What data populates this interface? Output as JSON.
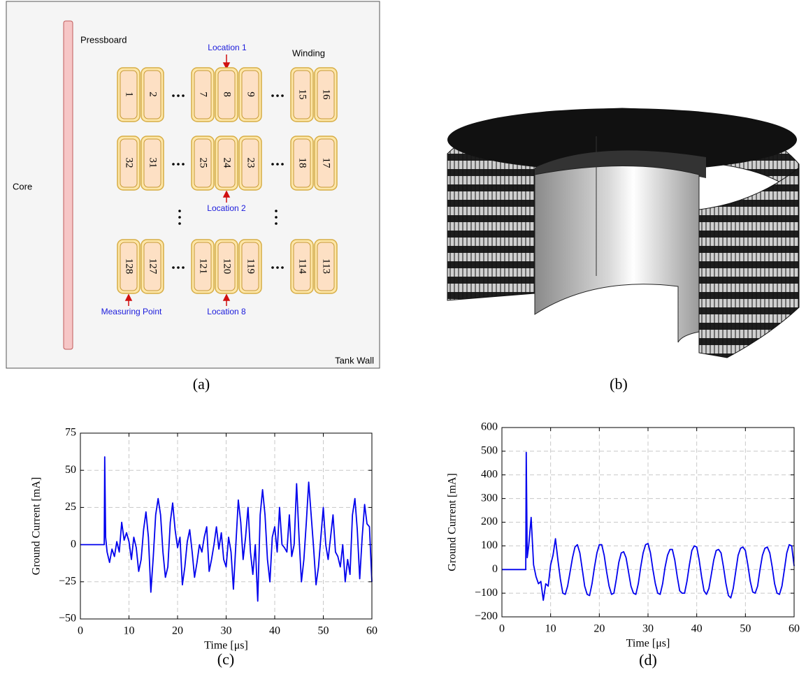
{
  "diagram": {
    "pressboard": "Pressboard",
    "core": "Core",
    "winding": "Winding",
    "tank_wall": "Tank Wall",
    "location_1": "Location 1",
    "location_2": "Location 2",
    "location_8": "Location 8",
    "measuring_point": "Measuring Point",
    "coil_rows": [
      [
        "1",
        "2",
        "7",
        "8",
        "9",
        "15",
        "16"
      ],
      [
        "32",
        "31",
        "25",
        "24",
        "23",
        "18",
        "17"
      ],
      [
        "128",
        "127",
        "121",
        "120",
        "119",
        "114",
        "113"
      ]
    ]
  },
  "captions": [
    "(a)",
    "(b)",
    "(c)",
    "(d)"
  ],
  "chart_data": [
    {
      "type": "line",
      "xlabel": "Time [μs]",
      "ylabel": "Ground Current [mA]",
      "color": "#0000ee",
      "grid": true,
      "xlim": [
        0,
        60
      ],
      "xticks": [
        0,
        10,
        20,
        30,
        40,
        50,
        60
      ],
      "ylim": [
        -50,
        75
      ],
      "yticks": [
        {
          "value": -50,
          "label": "−50"
        },
        {
          "value": -25,
          "label": "−25"
        },
        0,
        25,
        50,
        75
      ],
      "x": [
        0,
        4.9,
        5,
        5.2,
        5.5,
        6,
        6.5,
        7,
        7.5,
        8,
        8.5,
        9,
        9.5,
        10,
        10.5,
        11,
        11.5,
        12,
        12.5,
        13,
        13.5,
        14,
        14.5,
        15,
        15.5,
        16,
        16.5,
        17,
        17.5,
        18,
        18.5,
        19,
        19.5,
        20,
        20.5,
        21,
        21.5,
        22,
        22.5,
        23,
        23.5,
        24,
        24.5,
        25,
        25.5,
        26,
        26.5,
        27,
        27.5,
        28,
        28.5,
        29,
        29.5,
        30,
        30.5,
        31,
        31.5,
        32,
        32.5,
        33,
        33.5,
        34,
        34.5,
        35,
        35.5,
        36,
        36.5,
        37,
        37.5,
        38,
        38.5,
        39,
        39.5,
        40,
        40.5,
        41,
        41.5,
        42,
        42.5,
        43,
        43.5,
        44,
        44.5,
        45,
        45.5,
        46,
        46.5,
        47,
        47.5,
        48,
        48.5,
        49,
        49.5,
        50,
        50.5,
        51,
        51.5,
        52,
        52.5,
        53,
        53.5,
        54,
        54.5,
        55,
        55.5,
        56,
        56.5,
        57,
        57.5,
        58,
        58.5,
        59,
        59.5,
        60
      ],
      "values": [
        0,
        0,
        59,
        5,
        -5,
        -12,
        -3,
        -8,
        2,
        -5,
        15,
        3,
        8,
        2,
        -10,
        5,
        -2,
        -18,
        -10,
        10,
        22,
        5,
        -32,
        -8,
        20,
        31,
        20,
        -5,
        -22,
        -15,
        15,
        28,
        10,
        -2,
        5,
        -27,
        -15,
        2,
        10,
        -5,
        -22,
        -12,
        0,
        -5,
        5,
        12,
        -18,
        -10,
        0,
        12,
        -3,
        8,
        -10,
        -15,
        5,
        -5,
        -30,
        0,
        30,
        15,
        -10,
        5,
        25,
        -5,
        -20,
        0,
        -38,
        20,
        37,
        20,
        -10,
        -25,
        5,
        12,
        -5,
        25,
        0,
        -2,
        -5,
        20,
        -8,
        0,
        41,
        5,
        -25,
        -10,
        15,
        42,
        20,
        -2,
        -27,
        -15,
        5,
        25,
        0,
        -10,
        5,
        20,
        -5,
        -8,
        -15,
        0,
        -25,
        -10,
        -20,
        20,
        31,
        10,
        -23,
        5,
        27,
        14,
        12,
        -25
      ]
    },
    {
      "type": "line",
      "xlabel": "Time [μs]",
      "ylabel": "Ground Current [mA]",
      "color": "#0000ee",
      "grid": true,
      "xlim": [
        0,
        60
      ],
      "xticks": [
        0,
        10,
        20,
        30,
        40,
        50,
        60
      ],
      "ylim": [
        -200,
        600
      ],
      "yticks": [
        {
          "value": -200,
          "label": "−200"
        },
        {
          "value": -100,
          "label": "−100"
        },
        0,
        100,
        200,
        300,
        400,
        500,
        600
      ],
      "x": [
        0,
        4.9,
        5,
        5.2,
        5.5,
        6,
        6.5,
        7,
        7.5,
        8,
        8.5,
        9,
        9.5,
        10,
        10.5,
        11,
        11.5,
        12,
        12.5,
        13,
        13.5,
        14,
        14.5,
        15,
        15.5,
        16,
        16.5,
        17,
        17.5,
        18,
        18.5,
        19,
        19.5,
        20,
        20.5,
        21,
        21.5,
        22,
        22.5,
        23,
        23.5,
        24,
        24.5,
        25,
        25.5,
        26,
        26.5,
        27,
        27.5,
        28,
        28.5,
        29,
        29.5,
        30,
        30.5,
        31,
        31.5,
        32,
        32.5,
        33,
        33.5,
        34,
        34.5,
        35,
        35.5,
        36,
        36.5,
        37,
        37.5,
        38,
        38.5,
        39,
        39.5,
        40,
        40.5,
        41,
        41.5,
        42,
        42.5,
        43,
        43.5,
        44,
        44.5,
        45,
        45.5,
        46,
        46.5,
        47,
        47.5,
        48,
        48.5,
        49,
        49.5,
        50,
        50.5,
        51,
        51.5,
        52,
        52.5,
        53,
        53.5,
        54,
        54.5,
        55,
        55.5,
        56,
        56.5,
        57,
        57.5,
        58,
        58.5,
        59,
        59.5,
        60
      ],
      "values": [
        0,
        0,
        495,
        50,
        100,
        220,
        20,
        -30,
        -60,
        -50,
        -130,
        -60,
        -70,
        20,
        60,
        130,
        40,
        -40,
        -100,
        -105,
        -70,
        -10,
        50,
        95,
        105,
        70,
        0,
        -70,
        -105,
        -110,
        -60,
        10,
        70,
        105,
        105,
        60,
        -10,
        -70,
        -105,
        -100,
        -40,
        30,
        70,
        75,
        50,
        -10,
        -70,
        -100,
        -105,
        -60,
        10,
        70,
        105,
        110,
        70,
        0,
        -60,
        -100,
        -105,
        -60,
        10,
        60,
        85,
        85,
        40,
        -30,
        -90,
        -100,
        -100,
        -50,
        20,
        80,
        100,
        95,
        40,
        -30,
        -90,
        -105,
        -80,
        -20,
        40,
        80,
        85,
        70,
        10,
        -60,
        -110,
        -120,
        -80,
        -10,
        60,
        90,
        95,
        80,
        20,
        -50,
        -95,
        -100,
        -70,
        0,
        60,
        90,
        95,
        70,
        10,
        -60,
        -100,
        -105,
        -70,
        0,
        70,
        105,
        100,
        15
      ]
    }
  ]
}
